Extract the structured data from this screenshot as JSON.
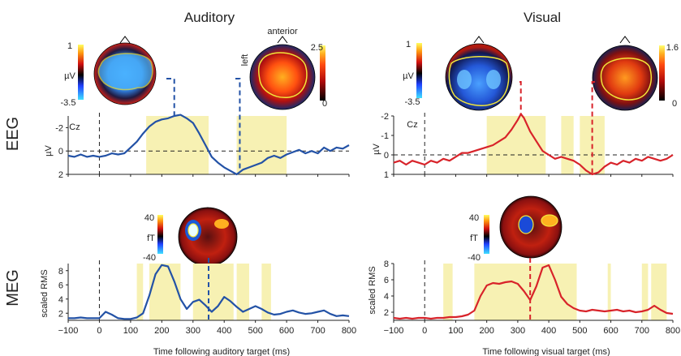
{
  "titles": {
    "auditory": "Auditory",
    "visual": "Visual"
  },
  "rows": {
    "eeg": "EEG",
    "meg": "MEG"
  },
  "labels": {
    "channel": "Cz",
    "anterior": "anterior",
    "left": "left",
    "uv": "µV",
    "ft": "fT",
    "scaled_rms": "scaled RMS",
    "xlabel_aud": "Time following auditory target (ms)",
    "xlabel_vis": "Time following visual target (ms)"
  },
  "colorbars": {
    "aud_eeg_1": {
      "max": "1",
      "min": "-3.5"
    },
    "aud_eeg_2": {
      "max": "2.5",
      "min": "0"
    },
    "vis_eeg_1": {
      "max": "1",
      "min": "-3.5"
    },
    "vis_eeg_2": {
      "max": "1.6",
      "min": "0"
    },
    "aud_meg": {
      "max": "40",
      "min": "-40"
    },
    "vis_meg": {
      "max": "40",
      "min": "-40"
    }
  },
  "colors": {
    "auditory": "#2352a6",
    "visual": "#d8232a",
    "highlight": "#f7f1b3",
    "contour": "#f2e63a"
  },
  "chart_data": [
    {
      "id": "aud_eeg",
      "type": "line",
      "title": "Auditory",
      "row": "EEG",
      "ylabel": "µV",
      "ylim": [
        2,
        -3
      ],
      "yticks": [
        -2,
        0,
        2
      ],
      "xlim": [
        -100,
        800
      ],
      "markers": [
        240,
        450
      ],
      "shaded": [
        [
          150,
          350
        ],
        [
          440,
          600
        ]
      ],
      "series": [
        {
          "x": [
            -100,
            -80,
            -60,
            -40,
            -20,
            0,
            20,
            40,
            60,
            80,
            100,
            120,
            140,
            160,
            180,
            200,
            220,
            240,
            260,
            280,
            300,
            320,
            340,
            360,
            380,
            400,
            420,
            440,
            460,
            480,
            500,
            520,
            540,
            560,
            580,
            600,
            620,
            640,
            660,
            680,
            700,
            720,
            740,
            760,
            780,
            800
          ],
          "y": [
            0.4,
            0.5,
            0.3,
            0.5,
            0.4,
            0.5,
            0.4,
            0.2,
            0.3,
            0.2,
            -0.3,
            -0.8,
            -1.5,
            -2.1,
            -2.5,
            -2.7,
            -2.8,
            -3.0,
            -3.1,
            -2.8,
            -2.4,
            -1.5,
            -0.5,
            0.5,
            1.0,
            1.4,
            1.7,
            2.0,
            1.6,
            1.4,
            1.2,
            1.0,
            0.6,
            0.4,
            0.6,
            0.3,
            0.1,
            -0.1,
            0.2,
            0.0,
            0.2,
            -0.3,
            0.0,
            -0.3,
            -0.2,
            -0.5
          ]
        }
      ]
    },
    {
      "id": "vis_eeg",
      "type": "line",
      "title": "Visual",
      "row": "EEG",
      "ylabel": "µV",
      "ylim": [
        1,
        -2
      ],
      "yticks": [
        -2,
        -1,
        0,
        1
      ],
      "xlim": [
        -100,
        800
      ],
      "markers": [
        310,
        540
      ],
      "shaded": [
        [
          200,
          390
        ],
        [
          440,
          480
        ],
        [
          500,
          580
        ]
      ],
      "series": [
        {
          "x": [
            -100,
            -80,
            -60,
            -40,
            -20,
            0,
            20,
            40,
            60,
            80,
            100,
            120,
            140,
            160,
            180,
            200,
            220,
            240,
            260,
            280,
            300,
            310,
            320,
            340,
            360,
            380,
            400,
            420,
            440,
            460,
            480,
            500,
            520,
            540,
            560,
            580,
            600,
            620,
            640,
            660,
            680,
            700,
            720,
            740,
            760,
            780,
            800
          ],
          "y": [
            0.4,
            0.3,
            0.5,
            0.3,
            0.4,
            0.5,
            0.3,
            0.4,
            0.2,
            0.3,
            0.1,
            -0.1,
            -0.1,
            -0.2,
            -0.3,
            -0.4,
            -0.5,
            -0.7,
            -0.9,
            -1.3,
            -1.8,
            -2.1,
            -1.9,
            -1.2,
            -0.7,
            -0.2,
            0.0,
            0.2,
            0.1,
            0.2,
            0.3,
            0.5,
            0.8,
            1.0,
            0.9,
            0.6,
            0.4,
            0.5,
            0.3,
            0.4,
            0.2,
            0.3,
            0.1,
            0.2,
            0.3,
            0.2,
            0.0
          ]
        }
      ]
    },
    {
      "id": "aud_meg",
      "type": "line",
      "title": "Auditory",
      "row": "MEG",
      "ylabel": "scaled RMS",
      "ylim": [
        1,
        9
      ],
      "yticks": [
        2,
        4,
        6,
        8
      ],
      "xlim": [
        -100,
        800
      ],
      "xticks": [
        -100,
        0,
        100,
        200,
        300,
        400,
        500,
        600,
        700,
        800
      ],
      "xlabel": "Time following auditory target (ms)",
      "markers": [
        350
      ],
      "shaded": [
        [
          120,
          140
        ],
        [
          160,
          260
        ],
        [
          300,
          430
        ],
        [
          440,
          480
        ],
        [
          520,
          550
        ]
      ],
      "series": [
        {
          "x": [
            -100,
            -80,
            -60,
            -40,
            -20,
            0,
            20,
            40,
            60,
            80,
            100,
            120,
            140,
            160,
            180,
            200,
            220,
            240,
            260,
            280,
            300,
            320,
            340,
            360,
            380,
            400,
            420,
            440,
            460,
            480,
            500,
            520,
            540,
            560,
            580,
            600,
            620,
            640,
            660,
            680,
            700,
            720,
            740,
            760,
            780,
            800
          ],
          "y": [
            1.3,
            1.3,
            1.4,
            1.3,
            1.3,
            1.3,
            2.2,
            1.8,
            1.3,
            1.2,
            1.2,
            1.4,
            2.0,
            4.5,
            7.5,
            8.8,
            8.6,
            6.5,
            4.0,
            2.6,
            3.6,
            3.9,
            3.1,
            2.2,
            3.0,
            4.3,
            3.7,
            2.9,
            2.2,
            2.6,
            3.0,
            2.6,
            2.1,
            1.8,
            1.9,
            2.2,
            2.4,
            2.1,
            1.9,
            2.0,
            2.2,
            2.4,
            1.9,
            1.6,
            1.7,
            1.6
          ]
        }
      ]
    },
    {
      "id": "vis_meg",
      "type": "line",
      "title": "Visual",
      "row": "MEG",
      "ylabel": "scaled RMS",
      "ylim": [
        1,
        8
      ],
      "yticks": [
        2,
        4,
        6,
        8
      ],
      "xlim": [
        -100,
        800
      ],
      "xticks": [
        -100,
        0,
        100,
        200,
        300,
        400,
        500,
        600,
        700,
        800
      ],
      "xlabel": "Time following visual target (ms)",
      "markers": [
        340
      ],
      "shaded": [
        [
          60,
          90
        ],
        [
          160,
          490
        ],
        [
          590,
          600
        ],
        [
          700,
          720
        ],
        [
          730,
          780
        ]
      ],
      "series": [
        {
          "x": [
            -100,
            -80,
            -60,
            -40,
            -20,
            0,
            20,
            40,
            60,
            80,
            100,
            120,
            140,
            160,
            180,
            200,
            220,
            240,
            260,
            280,
            300,
            320,
            340,
            360,
            380,
            400,
            420,
            440,
            460,
            480,
            500,
            520,
            540,
            560,
            580,
            600,
            620,
            640,
            660,
            680,
            700,
            720,
            740,
            760,
            780,
            800
          ],
          "y": [
            1.3,
            1.2,
            1.3,
            1.2,
            1.3,
            1.3,
            1.2,
            1.3,
            1.3,
            1.4,
            1.4,
            1.5,
            1.7,
            2.2,
            4.0,
            5.3,
            5.6,
            5.5,
            5.7,
            5.8,
            5.5,
            4.6,
            3.5,
            5.2,
            7.5,
            7.8,
            6.0,
            3.9,
            3.0,
            2.5,
            2.2,
            2.1,
            2.3,
            2.2,
            2.1,
            2.2,
            2.3,
            2.1,
            2.2,
            2.0,
            2.1,
            2.3,
            2.8,
            2.3,
            1.9,
            1.8
          ]
        }
      ]
    }
  ]
}
